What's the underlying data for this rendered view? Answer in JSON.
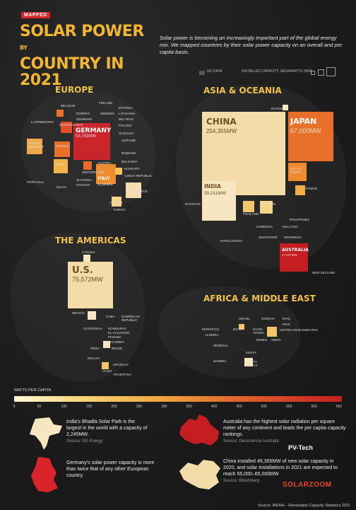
{
  "tag": "MAPPED",
  "title_line1": "SOLAR POWER",
  "title_by": "BY",
  "title_line2": "COUNTRY IN 2021",
  "intro": "Solar power is becoming an increasingly important part of the global energy mix. We mapped countries by their solar power capacity on an overall and per capita basis.",
  "legend": {
    "no_data": "NO DATA",
    "installed": "INSTALLED CAPACITY, MEGAWATTS (MW)"
  },
  "regions": {
    "europe": "EUROPE",
    "asia": "ASIA & OCEANIA",
    "americas": "THE AMERICAS",
    "africa": "AFRICA & MIDDLE EAST"
  },
  "countries": {
    "china": {
      "name": "CHINA",
      "value": "254,355MW"
    },
    "japan": {
      "name": "JAPAN",
      "value": "67,000MW"
    },
    "us": {
      "name": "U.S.",
      "value": "75,572MW"
    },
    "germany": {
      "name": "GERMANY",
      "value": "53,783MW"
    },
    "india": {
      "name": "INDIA",
      "value": "39,211MW"
    },
    "italy": {
      "name": "ITALY",
      "value": "21,600MW"
    },
    "australia": {
      "name": "AUSTRALIA",
      "value": "17,627MW"
    }
  },
  "small_labels": {
    "europe": [
      "BELGIUM",
      "FINLAND",
      "ESTONIA",
      "NORWAY",
      "SWEDEN",
      "LITHUANIA",
      "DENMARK",
      "BELARUS",
      "LUXEMBOURG",
      "NETHERLANDS",
      "POLAND",
      "SLOVAKIA",
      "UKRAINE",
      "FRANCE",
      "UNITED KINGDOM",
      "ROMANIA",
      "BULGARIA",
      "SPAIN",
      "AUSTRIA",
      "SWITZERLAND",
      "HUNGARY",
      "PORTUGAL",
      "SLOVENIA",
      "CROATIA",
      "CZECH REPUBLIC",
      "MALTA",
      "GREECE",
      "CYPRUS",
      "TURKEY"
    ],
    "asia": [
      "RUSSIA",
      "SOUTH KOREA",
      "TAIWAN",
      "PAKISTAN",
      "VIETNAM",
      "THAILAND",
      "PHILIPPINES",
      "CAMBODIA",
      "MALAYSIA",
      "SINGAPORE",
      "INDONESIA",
      "BANGLADESH",
      "NEW ZEALAND"
    ],
    "americas": [
      "CANADA",
      "MEXICO",
      "CUBA",
      "DOMINICAN REPUBLIC",
      "GUATEMALA",
      "HONDURAS",
      "EL SALVADOR",
      "PANAMA",
      "COLOMBIA",
      "PERU",
      "BRAZIL",
      "BOLIVIA",
      "URUGUAY",
      "CHILE",
      "ARGENTINA"
    ],
    "africa": [
      "ISRAEL",
      "JORDAN",
      "IRAQ",
      "MOROCCO",
      "EGYPT",
      "SAUDI ARABIA",
      "IRAN",
      "ALGERIA",
      "UNITED ARAB EMIRATES",
      "YEMEN",
      "OMAN",
      "SENEGAL",
      "KENYA",
      "NAMIBIA",
      "SOUTH AFRICA"
    ]
  },
  "per_capita": {
    "label": "WATTS PER CAPITA",
    "ticks": [
      "0",
      "50",
      "100",
      "150",
      "200",
      "250",
      "300",
      "350",
      "400",
      "450",
      "500",
      "550",
      "600",
      "650"
    ]
  },
  "facts": [
    {
      "text": "India's Bhadla Solar Park is the largest in the world with a capacity of 2,245MW.",
      "source": "Source: NS Energy"
    },
    {
      "text": "Australia has the highest solar radiation per square meter of any continent and leads the per capita capacity rankings.",
      "source": "Source: Geoscience Australia"
    },
    {
      "text": "Germany's solar power capacity is more than twice that of any other European country.",
      "source": ""
    },
    {
      "text": "China installed 49,355MW of new solar capacity in 2020, and solar installations in 2021 are expected to reach 55,000–65,000MW",
      "source": "Source: Bloomberg"
    }
  ],
  "footer": "Source: IRENA – Renewable Capacity Statistics 2021",
  "watermark": {
    "pvtech": "PV-Tech",
    "solarzoom": "SOLARZOOM"
  },
  "colors": {
    "accent": "#f2b632",
    "red": "#c51e22",
    "orange": "#e8702a",
    "cream": "#f3dcaa"
  }
}
